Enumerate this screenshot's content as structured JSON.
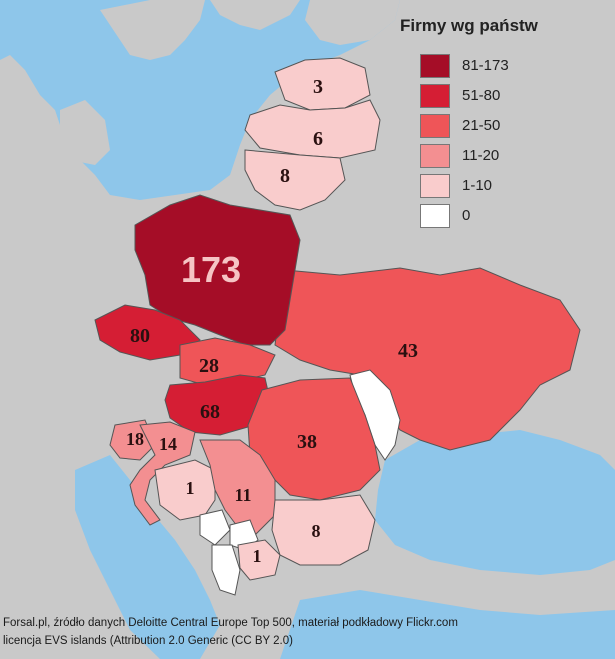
{
  "legend": {
    "title": "Firmy wg państw",
    "items": [
      {
        "label": "81-173",
        "color": "#a50d27"
      },
      {
        "label": "51-80",
        "color": "#d51e34"
      },
      {
        "label": "21-50",
        "color": "#ef5558"
      },
      {
        "label": "11-20",
        "color": "#f38f91"
      },
      {
        "label": "1-10",
        "color": "#f9cccc"
      },
      {
        "label": "0",
        "color": "#ffffff"
      }
    ]
  },
  "colors": {
    "sea": "#8ec6ea",
    "land": "#c9c9c9",
    "border": "#555555"
  },
  "regions": [
    {
      "id": "estonia",
      "value": "3",
      "color": "#f9cccc"
    },
    {
      "id": "latvia",
      "value": "6",
      "color": "#f9cccc"
    },
    {
      "id": "lithuania",
      "value": "8",
      "color": "#f9cccc"
    },
    {
      "id": "poland",
      "value": "173",
      "color": "#a50d27"
    },
    {
      "id": "czechia",
      "value": "80",
      "color": "#d51e34"
    },
    {
      "id": "slovakia",
      "value": "28",
      "color": "#ef5558"
    },
    {
      "id": "hungary",
      "value": "68",
      "color": "#d51e34"
    },
    {
      "id": "ukraine",
      "value": "43",
      "color": "#ef5558"
    },
    {
      "id": "moldova",
      "value": "",
      "color": "#ffffff"
    },
    {
      "id": "romania",
      "value": "38",
      "color": "#ef5558"
    },
    {
      "id": "slovenia",
      "value": "18",
      "color": "#f38f91"
    },
    {
      "id": "croatia",
      "value": "14",
      "color": "#f38f91"
    },
    {
      "id": "bosnia",
      "value": "1",
      "color": "#f9cccc"
    },
    {
      "id": "serbia",
      "value": "11",
      "color": "#f38f91"
    },
    {
      "id": "bulgaria",
      "value": "8",
      "color": "#f9cccc"
    },
    {
      "id": "macedonia",
      "value": "1",
      "color": "#f9cccc"
    },
    {
      "id": "montenegro",
      "value": "",
      "color": "#ffffff"
    },
    {
      "id": "albania",
      "value": "",
      "color": "#ffffff"
    },
    {
      "id": "kosovo",
      "value": "",
      "color": "#ffffff"
    }
  ],
  "credit": {
    "line1": "Forsal.pl, źródło danych Deloitte Central Europe Top 500, materiał podkładowy Flickr.com",
    "line2": "licencja EVS islands (Attribution 2.0 Generic (CC BY 2.0)"
  }
}
